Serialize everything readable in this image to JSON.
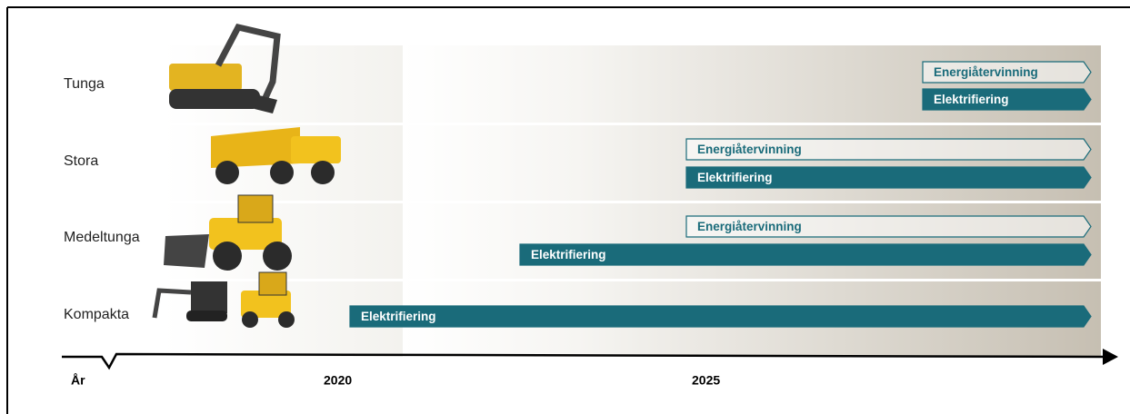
{
  "rows": [
    {
      "label": "Tunga",
      "bars": [
        "Energiåtervinning",
        "Elektrifiering"
      ]
    },
    {
      "label": "Stora",
      "bars": [
        "Energiåtervinning",
        "Elektrifiering"
      ]
    },
    {
      "label": "Medeltunga",
      "bars": [
        "Energiåtervinning",
        "Elektrifiering"
      ]
    },
    {
      "label": "Kompakta",
      "bars": [
        "Elektrifiering"
      ]
    }
  ],
  "axis": {
    "unit": "År",
    "ticks": [
      "2020",
      "2025"
    ]
  }
}
